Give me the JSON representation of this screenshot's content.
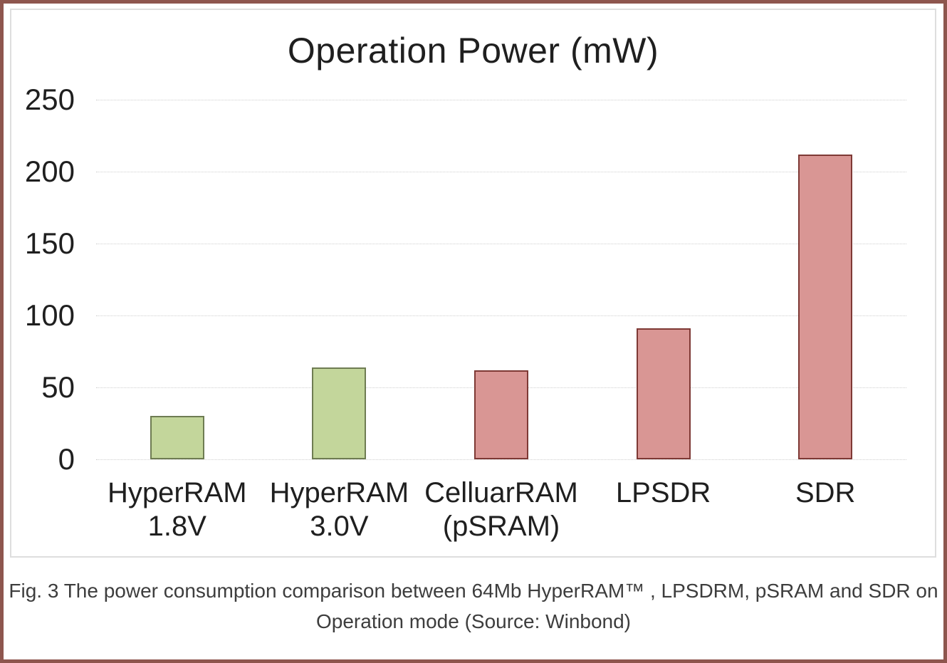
{
  "figure": {
    "caption_lines": [
      "Fig. 3 The power consumption comparison between 64Mb HyperRAM™ , LPSDRM, pSRAM and SDR on",
      "Operation mode (Source: Winbond)"
    ]
  },
  "chart_data": {
    "type": "bar",
    "title": "Operation Power (mW)",
    "categories": [
      [
        "HyperRAM",
        "1.8V"
      ],
      [
        "HyperRAM",
        "3.0V"
      ],
      [
        "CelluarRAM",
        "(pSRAM)"
      ],
      [
        "LPSDR"
      ],
      [
        "SDR"
      ]
    ],
    "values": [
      30,
      64,
      62,
      91,
      212
    ],
    "bar_fill": [
      "#c3d69b",
      "#c3d69b",
      "#d99694",
      "#d99694",
      "#d99694"
    ],
    "bar_border": [
      "#6e7c52",
      "#6e7c52",
      "#7e3935",
      "#7e3935",
      "#7e3935"
    ],
    "xlabel": "",
    "ylabel": "",
    "ylim": [
      0,
      250
    ],
    "yticks": [
      0,
      50,
      100,
      150,
      200,
      250
    ],
    "grid": true,
    "gridline_style": "dotted",
    "legend": false
  },
  "colors": {
    "page_frame": "#8e564e",
    "figure_border": "#dedede",
    "gridline": "#cfcfcf",
    "axis_text": "#1f1f1f",
    "caption_text": "#3d3d3d",
    "hyperram_fill": "#c3d69b",
    "hyperram_border": "#6e7c52",
    "other_fill": "#d99694",
    "other_border": "#7e3935"
  }
}
